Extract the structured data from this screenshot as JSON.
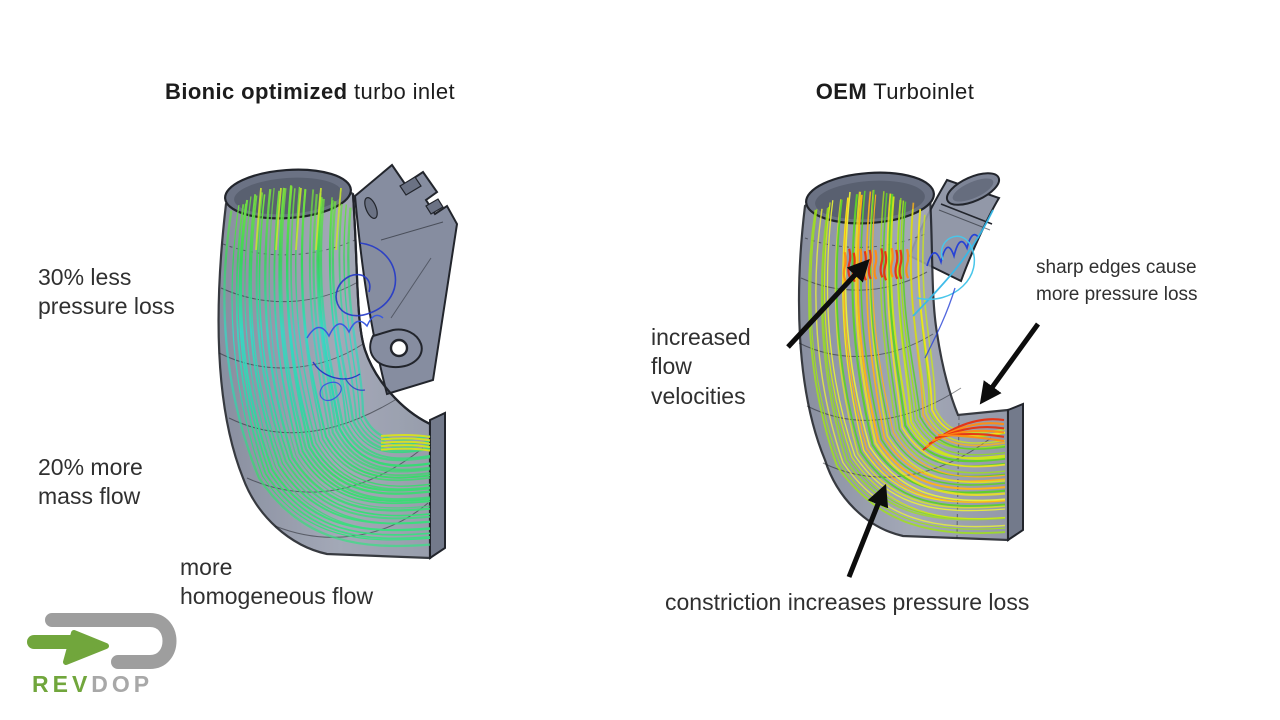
{
  "titles": {
    "left": {
      "bold": "Bionic optimized",
      "regular": " turbo inlet"
    },
    "right": {
      "bold": "OEM",
      "regular": " Turboinlet"
    }
  },
  "annotations": {
    "left": [
      {
        "text": "30% less\npressure loss"
      },
      {
        "text": "20% more\nmass flow"
      },
      {
        "text": "more\nhomogeneous flow"
      }
    ],
    "right": [
      {
        "text": "increased\nflow\nvelocities"
      },
      {
        "text": "sharp edges cause\nmore pressure loss"
      },
      {
        "text": "constriction increases pressure loss"
      }
    ]
  },
  "logo": {
    "brand": "RevDop",
    "text_green": "REV",
    "text_gray": "DOP",
    "green": "#71a63c",
    "gray": "#9e9e9e"
  },
  "colors": {
    "text": "#303030",
    "title_text": "#1c1c1c",
    "pipe_body": "#8d93a4",
    "pipe_outline": "#22252c",
    "arrow": "#0d0d0d",
    "left_flow_gradient": [
      "#7ee23a",
      "#34d65a",
      "#36d8c6",
      "#31d5ab",
      "#38db6a",
      "#3bdf86"
    ],
    "right_flow_palette": [
      "#f2e619",
      "#cbe51c",
      "#9fdf1f",
      "#5ccf2d",
      "#e8ef3a",
      "#ffb414",
      "#dde81e",
      "#8fdc22"
    ],
    "hot_red": "#e83010",
    "hot_orange": "#ff8c14",
    "exit_yellow_left": "#d8e21f",
    "top_yellow_left": "#c6e430",
    "swirl_blue": "#2438c8",
    "swirl_blue_light": "#3a5ae0",
    "swirl_cyan": "#36b8e8"
  }
}
